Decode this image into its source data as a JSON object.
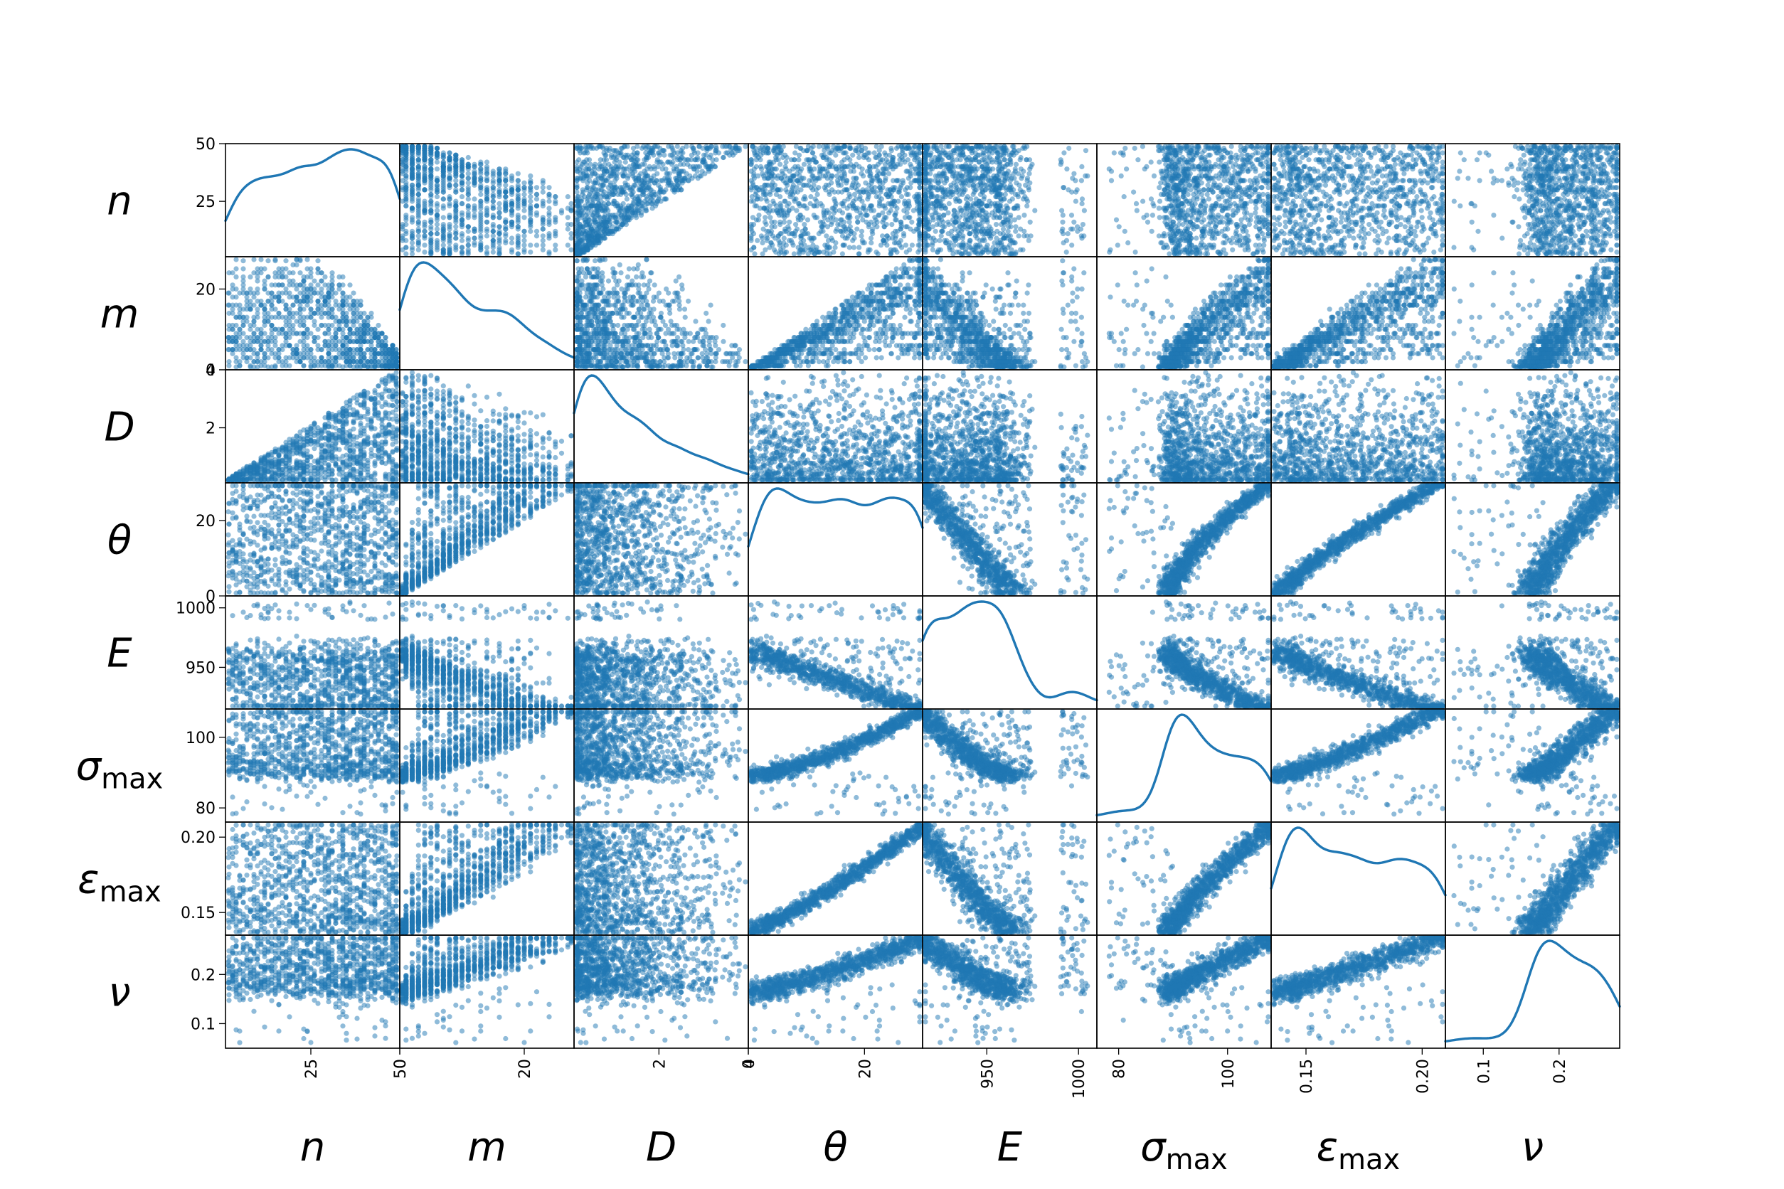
{
  "chart_data": {
    "type": "scatter",
    "kind": "scatter-matrix",
    "diagonal": "kde",
    "color": "#1f77b4",
    "point_alpha": 0.5,
    "variables": [
      {
        "key": "n",
        "symbol": "n",
        "subscript": "",
        "range": [
          1,
          50
        ],
        "y_ticks": [
          25,
          50
        ],
        "x_ticks": [
          25,
          50
        ]
      },
      {
        "key": "m",
        "symbol": "m",
        "subscript": "",
        "range": [
          0,
          28
        ],
        "y_ticks": [
          0,
          20
        ],
        "x_ticks": [
          0,
          20
        ]
      },
      {
        "key": "D",
        "symbol": "D",
        "subscript": "",
        "range": [
          0.1,
          4.0
        ],
        "y_ticks": [
          2,
          4
        ],
        "x_ticks": [
          2,
          4
        ]
      },
      {
        "key": "theta",
        "symbol": "θ",
        "subscript": "",
        "range": [
          0,
          30
        ],
        "y_ticks": [
          0,
          20
        ],
        "x_ticks": [
          0,
          20
        ]
      },
      {
        "key": "E",
        "symbol": "E",
        "subscript": "",
        "range": [
          915,
          1010
        ],
        "y_ticks": [
          950,
          1000
        ],
        "x_ticks": [
          950,
          1000
        ]
      },
      {
        "key": "sigma_max",
        "symbol": "σ",
        "subscript": "max",
        "range": [
          76,
          108
        ],
        "y_ticks": [
          80,
          100
        ],
        "x_ticks": [
          80,
          100
        ]
      },
      {
        "key": "eps_max",
        "symbol": "ε",
        "subscript": "max",
        "range": [
          0.135,
          0.21
        ],
        "y_ticks": [
          0.15,
          0.2
        ],
        "x_ticks": [
          0.15,
          0.2
        ]
      },
      {
        "key": "nu",
        "symbol": "ν",
        "subscript": "",
        "range": [
          0.05,
          0.28
        ],
        "y_ticks": [
          0.1,
          0.2
        ],
        "x_ticks": [
          0.1,
          0.2
        ]
      }
    ],
    "tick_text": {
      "n": {
        "25": "25",
        "50": "50"
      },
      "m": {
        "0": "0",
        "20": "20"
      },
      "D": {
        "2": "2",
        "4": "4"
      },
      "theta": {
        "0": "0",
        "20": "20"
      },
      "E": {
        "950": "950",
        "1000": "1000"
      },
      "sigma_max": {
        "80": "80",
        "100": "100"
      },
      "eps_max": {
        "0.15": "0.15",
        "0.2": "0.20"
      },
      "nu": {
        "0.1": "0.1",
        "0.2": "0.2"
      }
    }
  }
}
